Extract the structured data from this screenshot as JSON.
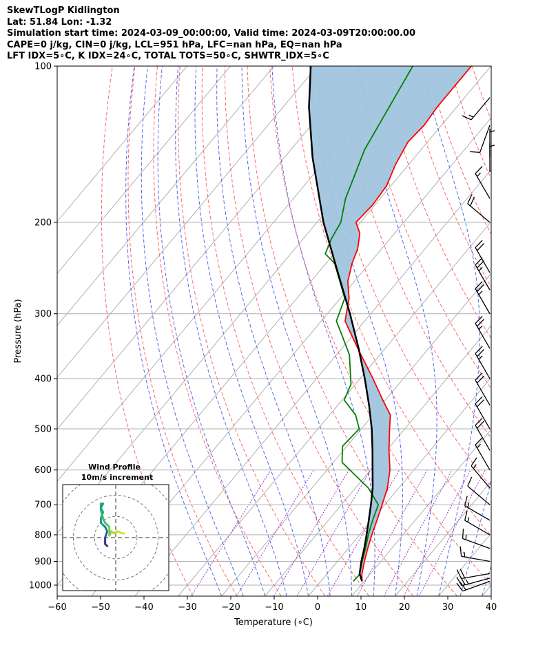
{
  "header": {
    "lines": [
      "SkewTLogP Kidlington",
      "Lat: 51.84   Lon: -1.32",
      "Simulation start time: 2024-03-09_00:00:00, Valid time: 2024-03-09T20:00:00.00",
      "CAPE=0 j/kg, CIN=0 j/kg, LCL=951 hPa, LFC=nan hPa, EQ=nan hPa",
      "LFT IDX=5∘C, K IDX=24∘C, TOTAL TOTS=50∘C, SHWTR_IDX=5∘C"
    ]
  },
  "chart_data": {
    "type": "line",
    "title": "SkewTLogP Kidlington",
    "xlabel": "Temperature (∘C)",
    "ylabel": "Pressure (hPa)",
    "xlim": [
      -60,
      40
    ],
    "ylim": [
      1050,
      100
    ],
    "y_scale": "log",
    "x_ticks": [
      "−60",
      "−50",
      "−40",
      "−30",
      "−20",
      "−10",
      "0",
      "10",
      "20",
      "30",
      "40"
    ],
    "x_tick_values": [
      -60,
      -50,
      -40,
      -30,
      -20,
      -10,
      0,
      10,
      20,
      30,
      40
    ],
    "y_ticks": [
      "1000",
      "900",
      "800",
      "700",
      "600",
      "500",
      "400",
      "300",
      "200",
      "100"
    ],
    "y_tick_values": [
      1000,
      900,
      800,
      700,
      600,
      500,
      400,
      300,
      200,
      100
    ],
    "grid": true,
    "colors": {
      "temperature": "#ff0000",
      "dewpoint": "#008000",
      "parcel": "#000000",
      "cin_fill": "#a0c4de",
      "dry_adiabats": "#ff6666",
      "moist_adiabats": "#5566ee",
      "mixing_ratio": "#9933cc",
      "isotherms": "#aaaaaa"
    },
    "temperature": [
      {
        "p": 983,
        "t": 9.5
      },
      {
        "p": 955,
        "t": 8.2
      },
      {
        "p": 900,
        "t": 6.2
      },
      {
        "p": 850,
        "t": 4.5
      },
      {
        "p": 800,
        "t": 2.8
      },
      {
        "p": 750,
        "t": 1.2
      },
      {
        "p": 700,
        "t": -0.6
      },
      {
        "p": 650,
        "t": -2.6
      },
      {
        "p": 600,
        "t": -5.5
      },
      {
        "p": 550,
        "t": -9.5
      },
      {
        "p": 500,
        "t": -13.5
      },
      {
        "p": 470,
        "t": -16.0
      },
      {
        "p": 440,
        "t": -20.6
      },
      {
        "p": 400,
        "t": -27.0
      },
      {
        "p": 350,
        "t": -36.3
      },
      {
        "p": 310,
        "t": -44.5
      },
      {
        "p": 280,
        "t": -48.0
      },
      {
        "p": 260,
        "t": -51.5
      },
      {
        "p": 240,
        "t": -54.0
      },
      {
        "p": 225,
        "t": -55.5
      },
      {
        "p": 210,
        "t": -58.0
      },
      {
        "p": 200,
        "t": -61.0
      },
      {
        "p": 185,
        "t": -60.5
      },
      {
        "p": 170,
        "t": -61.0
      },
      {
        "p": 155,
        "t": -63.0
      },
      {
        "p": 140,
        "t": -64.5
      },
      {
        "p": 130,
        "t": -64.0
      },
      {
        "p": 120,
        "t": -64.5
      },
      {
        "p": 110,
        "t": -64.5
      },
      {
        "p": 100,
        "t": -64.5
      }
    ],
    "dewpoint": [
      {
        "p": 983,
        "t": 7.5
      },
      {
        "p": 955,
        "t": 7.6
      },
      {
        "p": 900,
        "t": 5.7
      },
      {
        "p": 850,
        "t": 4.0
      },
      {
        "p": 800,
        "t": 2.0
      },
      {
        "p": 750,
        "t": 0.2
      },
      {
        "p": 700,
        "t": -1.5
      },
      {
        "p": 650,
        "t": -7.0
      },
      {
        "p": 580,
        "t": -18.0
      },
      {
        "p": 540,
        "t": -21.0
      },
      {
        "p": 500,
        "t": -20.5
      },
      {
        "p": 470,
        "t": -24.0
      },
      {
        "p": 440,
        "t": -29.5
      },
      {
        "p": 410,
        "t": -31.0
      },
      {
        "p": 360,
        "t": -37.0
      },
      {
        "p": 330,
        "t": -42.5
      },
      {
        "p": 310,
        "t": -46.5
      },
      {
        "p": 280,
        "t": -49.0
      },
      {
        "p": 240,
        "t": -58.0
      },
      {
        "p": 230,
        "t": -62.0
      },
      {
        "p": 215,
        "t": -63.5
      },
      {
        "p": 200,
        "t": -64.5
      },
      {
        "p": 180,
        "t": -68.0
      },
      {
        "p": 165,
        "t": -70.0
      },
      {
        "p": 145,
        "t": -73.0
      },
      {
        "p": 125,
        "t": -75.0
      },
      {
        "p": 100,
        "t": -78.0
      }
    ],
    "parcel_profile": [
      {
        "p": 983,
        "t": 9.5
      },
      {
        "p": 951,
        "t": 7.5
      },
      {
        "p": 900,
        "t": 5.5
      },
      {
        "p": 850,
        "t": 3.7
      },
      {
        "p": 800,
        "t": 1.6
      },
      {
        "p": 750,
        "t": -0.7
      },
      {
        "p": 700,
        "t": -3.2
      },
      {
        "p": 650,
        "t": -6.0
      },
      {
        "p": 600,
        "t": -9.5
      },
      {
        "p": 550,
        "t": -13.3
      },
      {
        "p": 500,
        "t": -17.6
      },
      {
        "p": 450,
        "t": -22.8
      },
      {
        "p": 400,
        "t": -28.9
      },
      {
        "p": 350,
        "t": -36.1
      },
      {
        "p": 300,
        "t": -44.8
      },
      {
        "p": 250,
        "t": -55.5
      },
      {
        "p": 200,
        "t": -68.5
      },
      {
        "p": 150,
        "t": -83.5
      },
      {
        "p": 120,
        "t": -94.0
      },
      {
        "p": 100,
        "t": -101.5
      }
    ],
    "wind_barbs": [
      {
        "p": 983,
        "speed_kt": 20,
        "dir": 250
      },
      {
        "p": 970,
        "speed_kt": 25,
        "dir": 255
      },
      {
        "p": 950,
        "speed_kt": 20,
        "dir": 260
      },
      {
        "p": 900,
        "speed_kt": 15,
        "dir": 280
      },
      {
        "p": 850,
        "speed_kt": 15,
        "dir": 290
      },
      {
        "p": 800,
        "speed_kt": 15,
        "dir": 300
      },
      {
        "p": 750,
        "speed_kt": 15,
        "dir": 300
      },
      {
        "p": 700,
        "speed_kt": 10,
        "dir": 310
      },
      {
        "p": 650,
        "speed_kt": 15,
        "dir": 320
      },
      {
        "p": 600,
        "speed_kt": 15,
        "dir": 330
      },
      {
        "p": 550,
        "speed_kt": 20,
        "dir": 330
      },
      {
        "p": 500,
        "speed_kt": 20,
        "dir": 330
      },
      {
        "p": 450,
        "speed_kt": 20,
        "dir": 330
      },
      {
        "p": 400,
        "speed_kt": 25,
        "dir": 330
      },
      {
        "p": 350,
        "speed_kt": 25,
        "dir": 330
      },
      {
        "p": 300,
        "speed_kt": 25,
        "dir": 330
      },
      {
        "p": 270,
        "speed_kt": 25,
        "dir": 330
      },
      {
        "p": 250,
        "speed_kt": 20,
        "dir": 330
      },
      {
        "p": 200,
        "speed_kt": 20,
        "dir": 310
      },
      {
        "p": 180,
        "speed_kt": 15,
        "dir": 330
      },
      {
        "p": 160,
        "speed_kt": 5,
        "dir": 0
      },
      {
        "p": 150,
        "speed_kt": 5,
        "dir": 0
      },
      {
        "p": 130,
        "speed_kt": 10,
        "dir": 200
      },
      {
        "p": 115,
        "speed_kt": 15,
        "dir": 220
      }
    ]
  },
  "hodograph": {
    "title": "Wind Profile",
    "subtitle": "10m/s increment",
    "rings_ms": [
      10,
      20,
      30
    ],
    "range_ms": 25,
    "trace": [
      {
        "u": -4,
        "v": -4,
        "c": "#440154"
      },
      {
        "u": -5,
        "v": -3,
        "c": "#46327e"
      },
      {
        "u": -5,
        "v": 0,
        "c": "#46327e"
      },
      {
        "u": -4,
        "v": 3,
        "c": "#365c8d"
      },
      {
        "u": -5,
        "v": 5,
        "c": "#277f8e"
      },
      {
        "u": -6,
        "v": 6,
        "c": "#277f8e"
      },
      {
        "u": -7,
        "v": 7,
        "c": "#1fa187"
      },
      {
        "u": -7,
        "v": 9,
        "c": "#1fa187"
      },
      {
        "u": -6,
        "v": 12,
        "c": "#1fa187"
      },
      {
        "u": -7,
        "v": 14,
        "c": "#1fa187"
      },
      {
        "u": -6,
        "v": 16,
        "c": "#1fa187"
      },
      {
        "u": -7,
        "v": 16,
        "c": "#1fa187"
      },
      {
        "u": -7,
        "v": 13,
        "c": "#1fa187"
      },
      {
        "u": -6,
        "v": 9,
        "c": "#2db27d"
      },
      {
        "u": -5,
        "v": 7,
        "c": "#3ebc73"
      },
      {
        "u": -4,
        "v": 6,
        "c": "#4ac16d"
      },
      {
        "u": -3,
        "v": 5,
        "c": "#4ac16d"
      },
      {
        "u": -3,
        "v": 3,
        "c": "#6ccd5a"
      },
      {
        "u": -3,
        "v": 1,
        "c": "#7ad151"
      },
      {
        "u": -2,
        "v": 3,
        "c": "#7ad151"
      },
      {
        "u": -1,
        "v": 2,
        "c": "#a0da39"
      },
      {
        "u": 1,
        "v": 3,
        "c": "#bade28"
      },
      {
        "u": 3,
        "v": 2,
        "c": "#d2e21b"
      },
      {
        "u": 4,
        "v": 2,
        "c": "#e5e419"
      }
    ]
  }
}
